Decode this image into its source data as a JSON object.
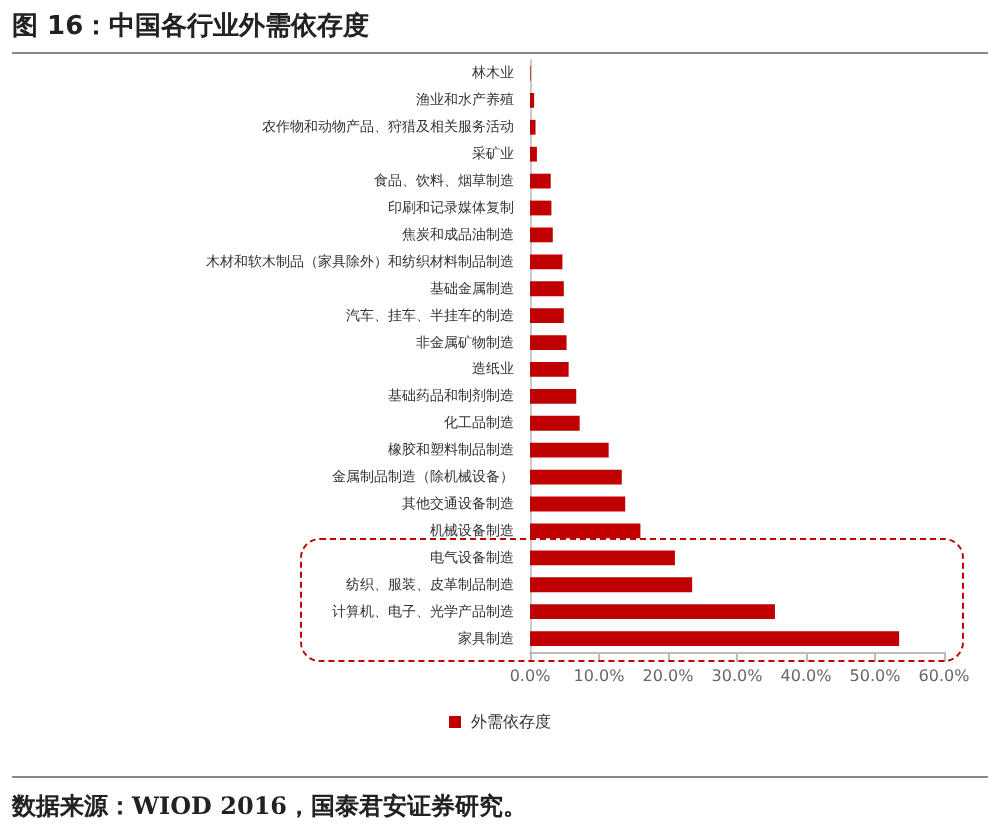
{
  "chart_data": {
    "type": "bar",
    "orientation": "horizontal",
    "title": "图 16：中国各行业外需依存度",
    "categories": [
      "林木业",
      "渔业和水产养殖",
      "农作物和动物产品、狩猎及相关服务活动",
      "采矿业",
      "食品、饮料、烟草制造",
      "印刷和记录媒体复制",
      "焦炭和成品油制造",
      "木材和软木制品（家具除外）和纺织材料制品制造",
      "基础金属制造",
      "汽车、挂车、半挂车的制造",
      "非金属矿物制造",
      "造纸业",
      "基础药品和制剂制造",
      "化工品制造",
      "橡胶和塑料制品制造",
      "金属制品制造（除机械设备）",
      "其他交通设备制造",
      "机械设备制造",
      "电气设备制造",
      "纺织、服装、皮革制品制造",
      "计算机、电子、光学产品制造",
      "家具制造"
    ],
    "series": [
      {
        "name": "外需依存度",
        "color": "#c00000",
        "values": [
          0.1,
          0.6,
          0.8,
          1.0,
          3.0,
          3.1,
          3.3,
          4.7,
          4.9,
          4.9,
          5.3,
          5.6,
          6.7,
          7.2,
          11.4,
          13.3,
          13.8,
          16.0,
          21.0,
          23.5,
          35.5,
          53.5
        ]
      }
    ],
    "xlim": [
      0,
      60
    ],
    "xticks": [
      {
        "value": 0,
        "label": "0.0%"
      },
      {
        "value": 10,
        "label": "10.0%"
      },
      {
        "value": 20,
        "label": "20.0%"
      },
      {
        "value": 30,
        "label": "30.0%"
      },
      {
        "value": 40,
        "label": "40.0%"
      },
      {
        "value": 50,
        "label": "50.0%"
      },
      {
        "value": 60,
        "label": "60.0%"
      }
    ],
    "legend": "bottom",
    "grid": false,
    "annotations": [
      "数据来源：WIOD 2016，国泰君安证券研究。"
    ]
  }
}
